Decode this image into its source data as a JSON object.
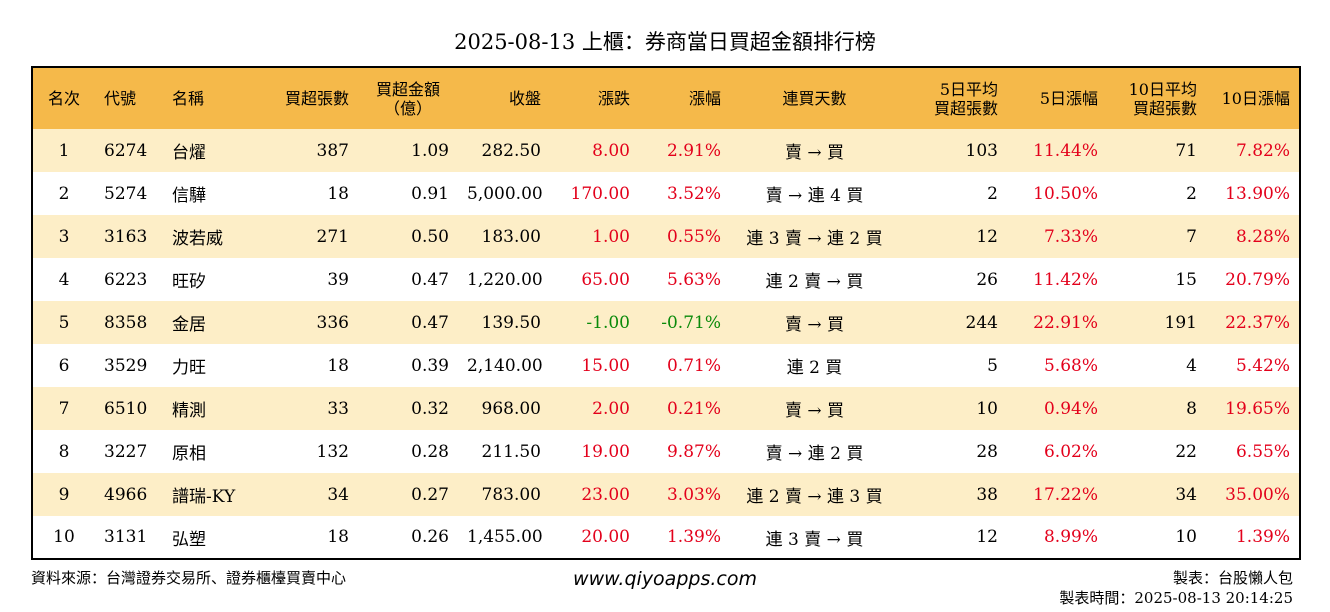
{
  "title": "2025-08-13 上櫃：券商當日買超金額排行榜",
  "headers": {
    "rank": "名次",
    "code": "代號",
    "name": "名稱",
    "net_shares": "買超張數",
    "net_amount_1": "買超金額",
    "net_amount_2": "（億）",
    "close": "收盤",
    "change": "漲跌",
    "pct": "漲幅",
    "streak": "連買天數",
    "avg5_1": "5日平均",
    "avg5_2": "買超張數",
    "pct5": "5日漲幅",
    "avg10_1": "10日平均",
    "avg10_2": "買超張數",
    "pct10": "10日漲幅"
  },
  "colors": {
    "header_bg": "#f5b94a",
    "odd_row_bg": "#fdeec7",
    "up": "#e3001b",
    "down": "#0a8a0a"
  },
  "rows": [
    {
      "rank": "1",
      "code": "6274",
      "name": "台燿",
      "net_shares": "387",
      "net_amount": "1.09",
      "close": "282.50",
      "change": "8.00",
      "pct": "2.91%",
      "streak": "賣 → 買",
      "avg5": "103",
      "pct5": "11.44%",
      "avg10": "71",
      "pct10": "7.82%",
      "dir": "up"
    },
    {
      "rank": "2",
      "code": "5274",
      "name": "信驊",
      "net_shares": "18",
      "net_amount": "0.91",
      "close": "5,000.00",
      "change": "170.00",
      "pct": "3.52%",
      "streak": "賣 → 連 4 買",
      "avg5": "2",
      "pct5": "10.50%",
      "avg10": "2",
      "pct10": "13.90%",
      "dir": "up"
    },
    {
      "rank": "3",
      "code": "3163",
      "name": "波若威",
      "net_shares": "271",
      "net_amount": "0.50",
      "close": "183.00",
      "change": "1.00",
      "pct": "0.55%",
      "streak": "連 3 賣 → 連 2 買",
      "avg5": "12",
      "pct5": "7.33%",
      "avg10": "7",
      "pct10": "8.28%",
      "dir": "up"
    },
    {
      "rank": "4",
      "code": "6223",
      "name": "旺矽",
      "net_shares": "39",
      "net_amount": "0.47",
      "close": "1,220.00",
      "change": "65.00",
      "pct": "5.63%",
      "streak": "連 2 賣 → 買",
      "avg5": "26",
      "pct5": "11.42%",
      "avg10": "15",
      "pct10": "20.79%",
      "dir": "up"
    },
    {
      "rank": "5",
      "code": "8358",
      "name": "金居",
      "net_shares": "336",
      "net_amount": "0.47",
      "close": "139.50",
      "change": "-1.00",
      "pct": "-0.71%",
      "streak": "賣 → 買",
      "avg5": "244",
      "pct5": "22.91%",
      "avg10": "191",
      "pct10": "22.37%",
      "dir": "down"
    },
    {
      "rank": "6",
      "code": "3529",
      "name": "力旺",
      "net_shares": "18",
      "net_amount": "0.39",
      "close": "2,140.00",
      "change": "15.00",
      "pct": "0.71%",
      "streak": "連 2 買",
      "avg5": "5",
      "pct5": "5.68%",
      "avg10": "4",
      "pct10": "5.42%",
      "dir": "up"
    },
    {
      "rank": "7",
      "code": "6510",
      "name": "精測",
      "net_shares": "33",
      "net_amount": "0.32",
      "close": "968.00",
      "change": "2.00",
      "pct": "0.21%",
      "streak": "賣 → 買",
      "avg5": "10",
      "pct5": "0.94%",
      "avg10": "8",
      "pct10": "19.65%",
      "dir": "up"
    },
    {
      "rank": "8",
      "code": "3227",
      "name": "原相",
      "net_shares": "132",
      "net_amount": "0.28",
      "close": "211.50",
      "change": "19.00",
      "pct": "9.87%",
      "streak": "賣 → 連 2 買",
      "avg5": "28",
      "pct5": "6.02%",
      "avg10": "22",
      "pct10": "6.55%",
      "dir": "up"
    },
    {
      "rank": "9",
      "code": "4966",
      "name": "譜瑞-KY",
      "net_shares": "34",
      "net_amount": "0.27",
      "close": "783.00",
      "change": "23.00",
      "pct": "3.03%",
      "streak": "連 2 賣 → 連 3 買",
      "avg5": "38",
      "pct5": "17.22%",
      "avg10": "34",
      "pct10": "35.00%",
      "dir": "up"
    },
    {
      "rank": "10",
      "code": "3131",
      "name": "弘塑",
      "net_shares": "18",
      "net_amount": "0.26",
      "close": "1,455.00",
      "change": "20.00",
      "pct": "1.39%",
      "streak": "連 3 賣 → 買",
      "avg5": "12",
      "pct5": "8.99%",
      "avg10": "10",
      "pct10": "1.39%",
      "dir": "up"
    }
  ],
  "footer": {
    "source": "資料來源：台灣證券交易所、證券櫃檯買賣中心",
    "website": "www.qiyoapps.com",
    "author": "製表：台股懶人包",
    "time": "製表時間：2025-08-13 20:14:25"
  }
}
